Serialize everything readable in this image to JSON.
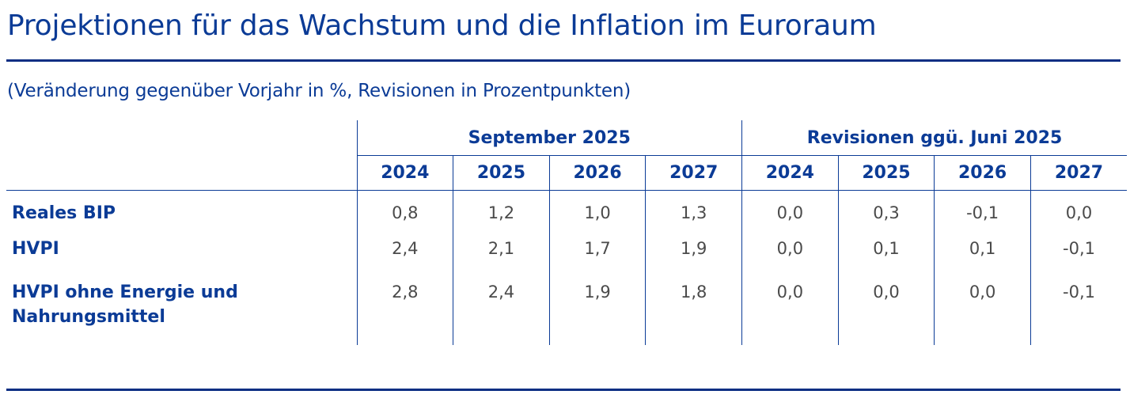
{
  "title": "Projektionen für das Wachstum und die Inflation im Euroraum",
  "subtitle": "(Veränderung gegenüber Vorjahr in %, Revisionen in Prozentpunkten)",
  "table": {
    "groups": [
      "September 2025",
      "Revisionen ggü. Juni 2025"
    ],
    "years": [
      "2024",
      "2025",
      "2026",
      "2027",
      "2024",
      "2025",
      "2026",
      "2027"
    ],
    "rows": [
      {
        "label_line1": "Reales BIP",
        "label_line2": "",
        "values": [
          "0,8",
          "1,2",
          "1,0",
          "1,3",
          "0,0",
          "0,3",
          "-0,1",
          "0,0"
        ]
      },
      {
        "label_line1": "HVPI",
        "label_line2": "",
        "values": [
          "2,4",
          "2,1",
          "1,7",
          "1,9",
          "0,0",
          "0,1",
          "0,1",
          "-0,1"
        ]
      },
      {
        "label_line1": "HVPI ohne Energie und",
        "label_line2": "Nahrungsmittel",
        "values": [
          "2,8",
          "2,4",
          "1,9",
          "1,8",
          "0,0",
          "0,0",
          "0,0",
          "-0,1"
        ]
      }
    ]
  },
  "colors": {
    "text_blue": "#0b3b96",
    "rule_blue": "#0b2e83",
    "value_grey": "#4a4a4a"
  }
}
